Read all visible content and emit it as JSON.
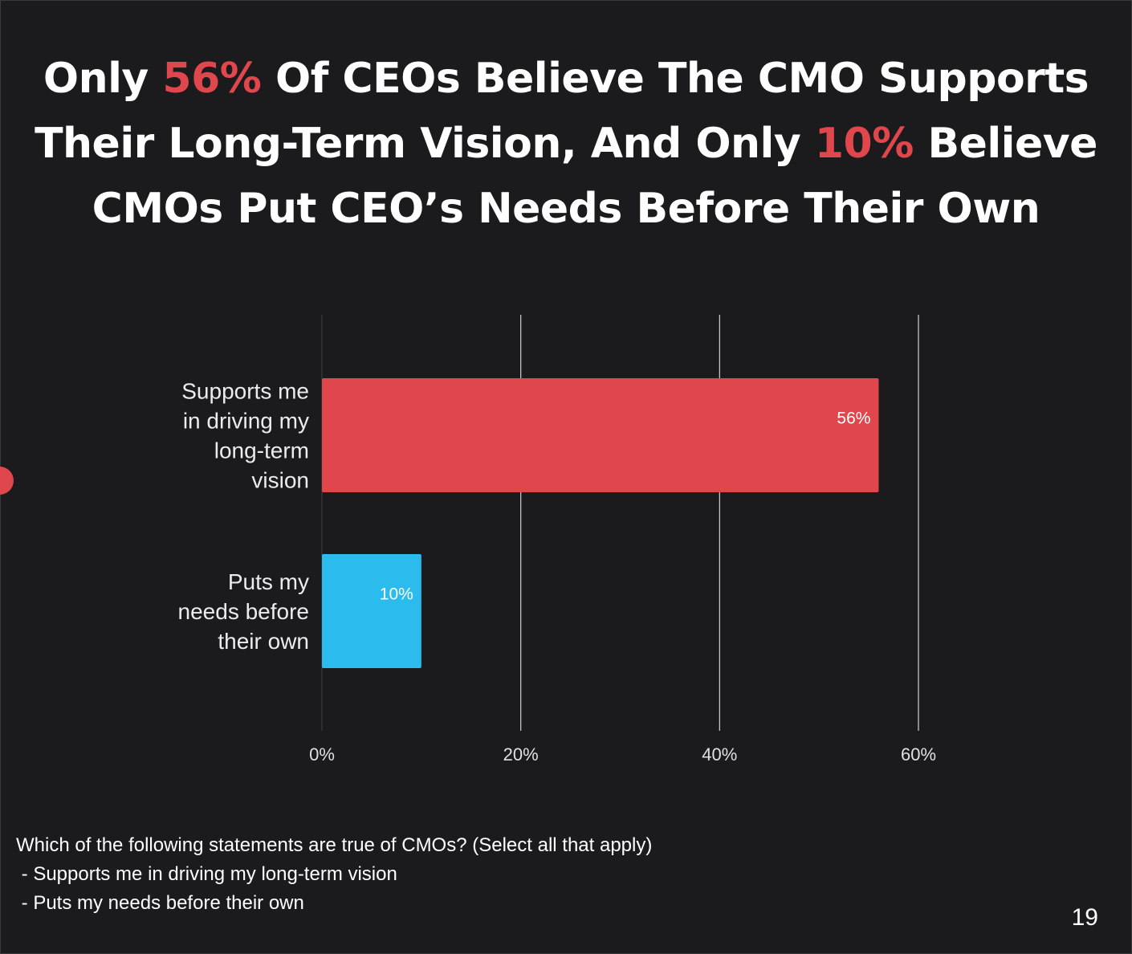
{
  "headline": {
    "line1": {
      "pre": "Only ",
      "accent": "56%",
      "post": " Of CEOs Believe The CMO Supports"
    },
    "line2": {
      "pre": "Their Long-Term Vision, And Only ",
      "accent": "10%",
      "post": " Believe"
    },
    "line3": "CMOs Put CEO’s Needs Before Their Own"
  },
  "colors": {
    "background": "#1b1b1d",
    "accent": "#e0474c",
    "bar_blue": "#2bbbec"
  },
  "chart_data": {
    "type": "bar",
    "orientation": "horizontal",
    "categories": [
      [
        "Supports me",
        "in driving my",
        "long-term",
        "vision"
      ],
      [
        "Puts my",
        "needs before",
        "their own"
      ]
    ],
    "values": [
      56,
      10
    ],
    "data_labels": [
      "56%",
      "10%"
    ],
    "bar_colors": [
      "#e0474c",
      "#2bbbec"
    ],
    "xlim": [
      0,
      60
    ],
    "x_ticks": [
      0,
      20,
      40,
      60
    ],
    "x_tick_labels": [
      "0%",
      "20%",
      "40%",
      "60%"
    ],
    "grid": true,
    "legend": "none"
  },
  "footnote": {
    "lines": [
      "Which of the following statements are true of CMOs? (Select all that apply)",
      " - Supports me in driving my long-term vision",
      " - Puts my needs before their own"
    ]
  },
  "page_number": "19"
}
